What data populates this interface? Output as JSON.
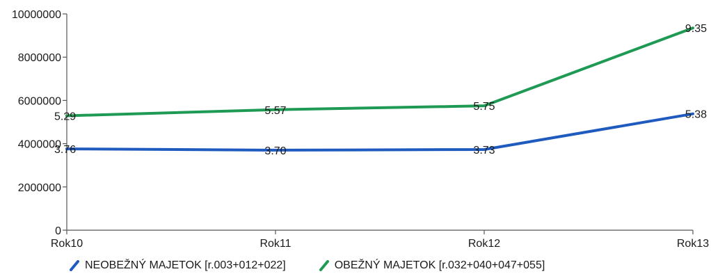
{
  "chart_data": {
    "type": "line",
    "title": "",
    "xlabel": "",
    "ylabel": "",
    "categories": [
      "Rok10",
      "Rok11",
      "Rok12",
      "Rok13"
    ],
    "ylim": [
      0,
      10000000
    ],
    "yticks": [
      0,
      2000000,
      4000000,
      6000000,
      8000000,
      10000000
    ],
    "ytick_labels": [
      "0",
      "2000000",
      "4000000",
      "6000000",
      "8000000",
      "10000000"
    ],
    "grid": false,
    "legend_position": "bottom",
    "series": [
      {
        "name": "NEOBEŽNÝ MAJETOK [r.003+012+022]",
        "color": "#1f5bbf",
        "values": [
          3760000,
          3700000,
          3730000,
          5380000
        ],
        "labels": [
          "3.76",
          "3.70",
          "3.73",
          "5.38"
        ]
      },
      {
        "name": "OBEŽNÝ MAJETOK [r.032+040+047+055]",
        "color": "#1e9a54",
        "values": [
          5290000,
          5570000,
          5750000,
          9350000
        ],
        "labels": [
          "5.29",
          "5.57",
          "5.75",
          "9.35"
        ]
      }
    ]
  }
}
